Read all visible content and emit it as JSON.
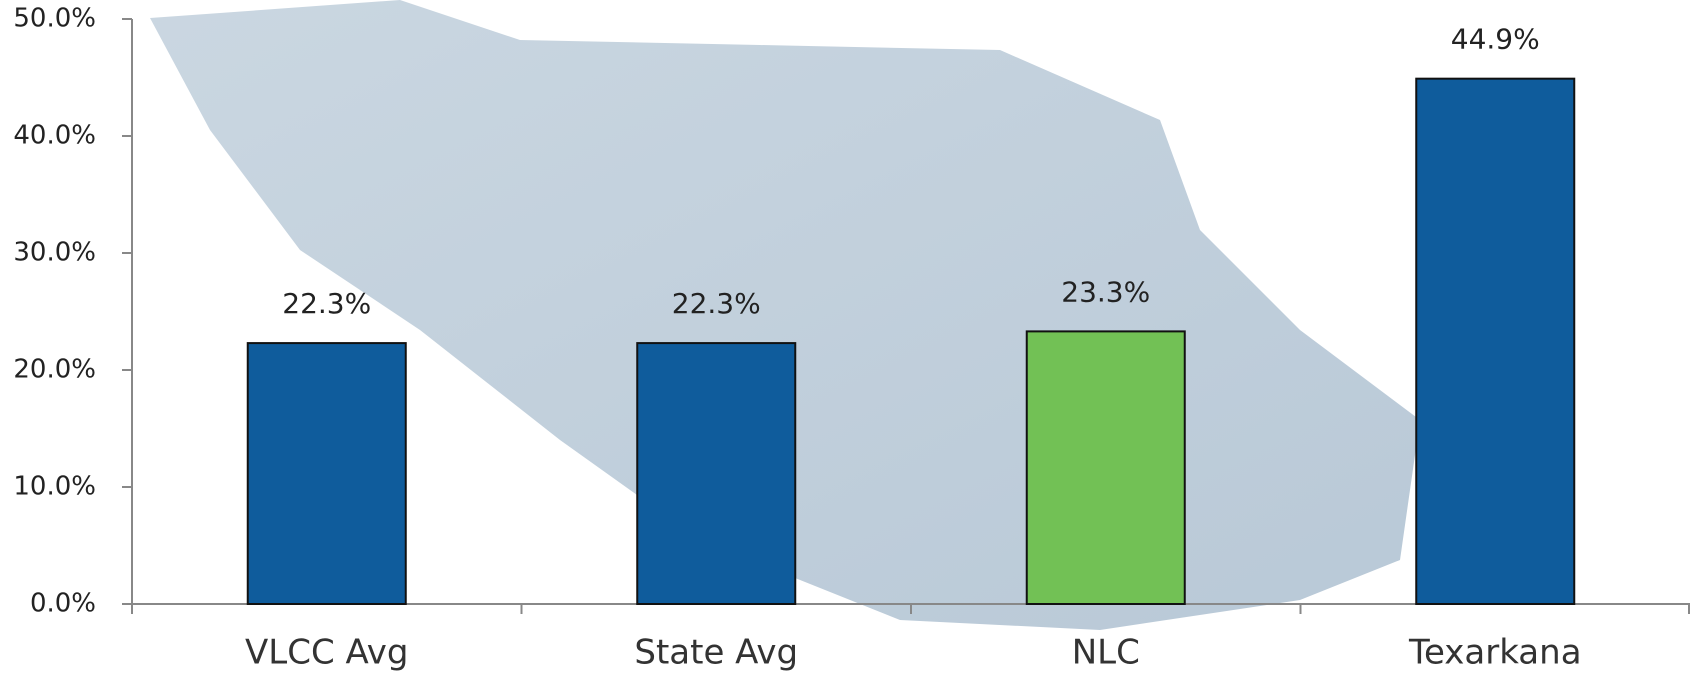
{
  "chart_data": {
    "type": "bar",
    "categories": [
      "VLCC Avg",
      "State Avg",
      "NLC",
      "Texarkana"
    ],
    "values": [
      22.3,
      22.3,
      23.3,
      44.9
    ],
    "value_labels": [
      "22.3%",
      "22.3%",
      "23.3%",
      "44.9%"
    ],
    "colors": [
      "#0f5c9c",
      "#0f5c9c",
      "#72c155",
      "#0f5c9c"
    ],
    "ylim": [
      0,
      50
    ],
    "yticks": [
      {
        "value": 0,
        "label": "0.0%"
      },
      {
        "value": 10,
        "label": "10.0%"
      },
      {
        "value": 20,
        "label": "20.0%"
      },
      {
        "value": 30,
        "label": "30.0%"
      },
      {
        "value": 40,
        "label": "40.0%"
      },
      {
        "value": 50,
        "label": "50.0%"
      }
    ]
  }
}
